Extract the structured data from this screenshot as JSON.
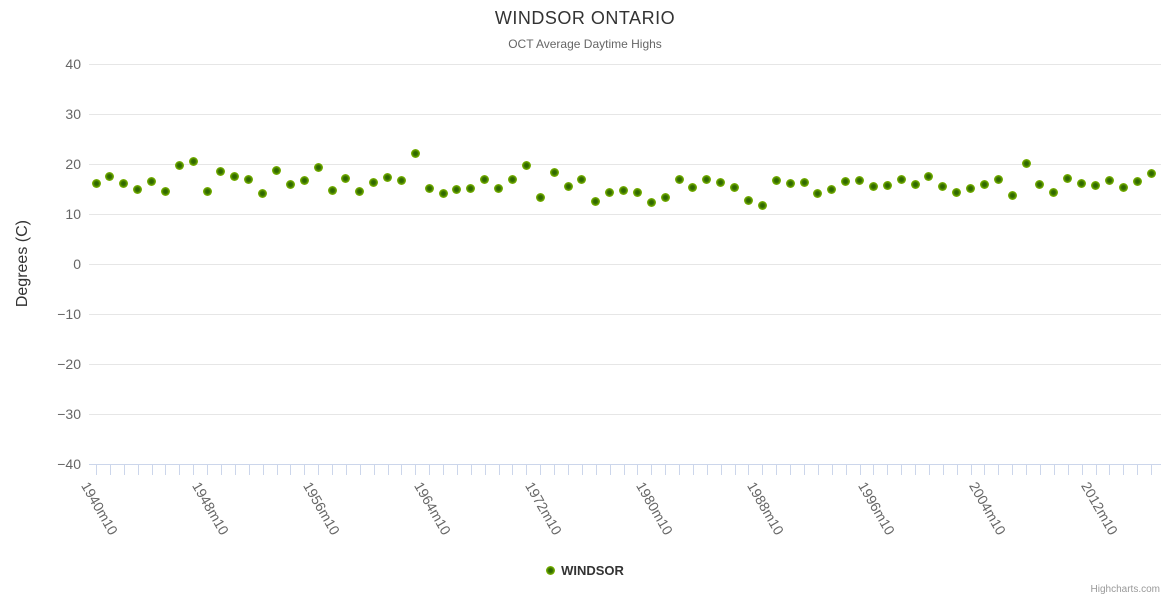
{
  "header": {
    "title": "WINDSOR ONTARIO",
    "subtitle": "OCT Average Daytime Highs"
  },
  "y_axis": {
    "title": "Degrees (C)",
    "ticks": [
      40,
      30,
      20,
      10,
      0,
      -10,
      -20,
      -30,
      -40
    ]
  },
  "x_axis": {
    "labels": [
      "1940m10",
      "1948m10",
      "1956m10",
      "1964m10",
      "1972m10",
      "1980m10",
      "1988m10",
      "1996m10",
      "2004m10",
      "2012m10"
    ],
    "label_every_n_points": 8
  },
  "legend": {
    "series_label": "WINDSOR"
  },
  "credits": {
    "text": "Highcharts.com"
  },
  "colors": {
    "point_outer": "#8bc62e",
    "point_core": "#2d6300",
    "gridline": "#e6e6e6",
    "axis_line": "#ccd6eb",
    "title_text": "#333333",
    "label_text": "#666666",
    "credits_text": "#999999"
  },
  "chart_data": {
    "type": "scatter",
    "title": "WINDSOR ONTARIO",
    "subtitle": "OCT Average Daytime Highs",
    "xlabel": "",
    "ylabel": "Degrees (C)",
    "ylim": [
      -40,
      40
    ],
    "grid": true,
    "legend_position": "bottom-center",
    "x_tick_labels": [
      "1940m10",
      "1948m10",
      "1956m10",
      "1964m10",
      "1972m10",
      "1980m10",
      "1988m10",
      "1996m10",
      "2004m10",
      "2012m10"
    ],
    "series": [
      {
        "name": "WINDSOR",
        "x": [
          1940,
          1941,
          1942,
          1943,
          1944,
          1945,
          1946,
          1947,
          1948,
          1949,
          1950,
          1951,
          1952,
          1953,
          1954,
          1955,
          1956,
          1957,
          1958,
          1959,
          1960,
          1961,
          1962,
          1963,
          1964,
          1965,
          1966,
          1967,
          1968,
          1969,
          1970,
          1971,
          1972,
          1973,
          1974,
          1975,
          1976,
          1977,
          1978,
          1979,
          1980,
          1981,
          1982,
          1983,
          1984,
          1985,
          1986,
          1987,
          1988,
          1989,
          1990,
          1991,
          1992,
          1993,
          1994,
          1995,
          1996,
          1997,
          1998,
          1999,
          2000,
          2001,
          2002,
          2003,
          2004,
          2005,
          2006,
          2007,
          2008,
          2009,
          2010,
          2011,
          2012,
          2013,
          2014,
          2015,
          2016
        ],
        "values": [
          16.1,
          17.5,
          16.1,
          14.9,
          16.6,
          14.5,
          19.7,
          20.6,
          14.6,
          18.5,
          17.5,
          17.0,
          14.1,
          18.8,
          15.9,
          16.7,
          19.3,
          14.7,
          17.1,
          14.5,
          16.3,
          17.4,
          16.7,
          22.1,
          15.1,
          14.1,
          14.9,
          15.1,
          16.9,
          15.1,
          16.9,
          19.7,
          13.3,
          18.4,
          15.6,
          16.9,
          12.6,
          14.3,
          14.8,
          14.3,
          12.4,
          13.3,
          17.0,
          15.3,
          17.0,
          16.3,
          15.4,
          12.8,
          11.7,
          16.8,
          16.1,
          16.4,
          14.1,
          14.9,
          16.5,
          16.7,
          15.6,
          15.7,
          16.9,
          16.0,
          17.5,
          15.6,
          14.3,
          15.1,
          15.9,
          16.9,
          13.7,
          20.1,
          15.9,
          14.3,
          17.1,
          16.2,
          15.8,
          16.8,
          15.3,
          16.6,
          18.1
        ]
      }
    ]
  }
}
